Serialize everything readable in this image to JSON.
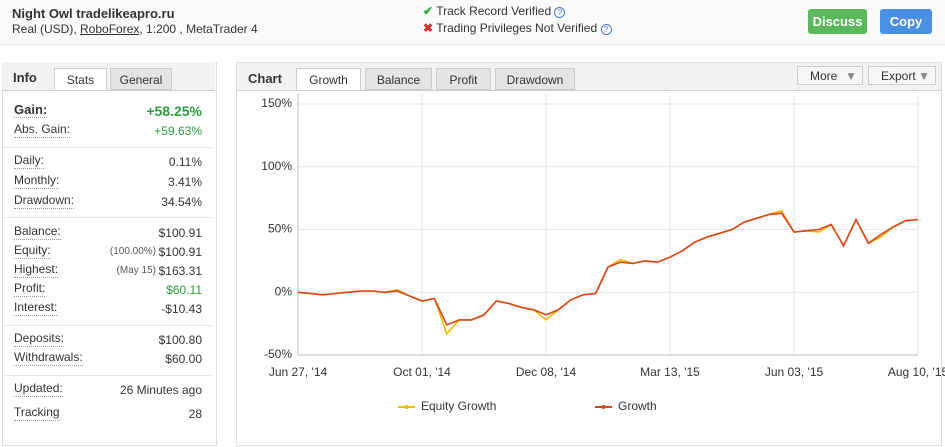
{
  "header": {
    "title": "Night Owl tradelikeapro.ru",
    "account": "Real (USD), ",
    "broker": "RoboForex",
    "details": ", 1:200 , MetaTrader 4",
    "verified": "Track Record Verified",
    "not_verified": "Trading Privileges Not Verified",
    "discuss": "Discuss",
    "copy": "Copy"
  },
  "info": {
    "title": "Info",
    "tabs": [
      "Stats",
      "General"
    ],
    "groups": [
      [
        {
          "label": "Gain:",
          "value": "+58.25%"
        },
        {
          "label": "Abs. Gain:",
          "value": "+59.63%"
        }
      ],
      [
        {
          "label": "Daily:",
          "value": "0.11%"
        },
        {
          "label": "Monthly:",
          "value": "3.41%"
        },
        {
          "label": "Drawdown:",
          "value": "34.54%"
        }
      ],
      [
        {
          "label": "Balance:",
          "value": "$100.91"
        },
        {
          "label": "Equity:",
          "value": "$100.91",
          "note": "(100.00%)"
        },
        {
          "label": "Highest:",
          "value": "$163.31",
          "note": "(May 15)"
        },
        {
          "label": "Profit:",
          "value": "$60.11"
        },
        {
          "label": "Interest:",
          "value": "-$10.43"
        }
      ],
      [
        {
          "label": "Deposits:",
          "value": "$100.80"
        },
        {
          "label": "Withdrawals:",
          "value": "$60.00"
        }
      ],
      [
        {
          "label": "Updated:",
          "value": "26 Minutes ago"
        },
        {
          "label": "Tracking",
          "value": "28"
        }
      ]
    ]
  },
  "chart_panel": {
    "title": "Chart",
    "tabs": [
      "Growth",
      "Balance",
      "Profit",
      "Drawdown"
    ],
    "more": "More",
    "export": "Export"
  },
  "chart_data": {
    "type": "line",
    "categories": [
      "Jun 27, '14",
      null,
      null,
      null,
      null,
      null,
      null,
      null,
      null,
      null,
      "Oct 01, '14",
      null,
      null,
      null,
      null,
      null,
      null,
      null,
      null,
      null,
      "Dec 08, '14",
      null,
      null,
      null,
      null,
      null,
      null,
      null,
      null,
      null,
      "Mar 13, '15",
      null,
      null,
      null,
      null,
      null,
      null,
      null,
      null,
      null,
      "Jun 03, '15",
      null,
      null,
      null,
      null,
      null,
      null,
      null,
      null,
      null,
      "Aug 10, '15"
    ],
    "series": [
      {
        "name": "Equity Growth",
        "color": "#f5b800",
        "values": [
          0,
          -1,
          -2,
          -1,
          0,
          1,
          1,
          0,
          2,
          -3,
          -7,
          -5,
          -33,
          -22,
          -22,
          -18,
          -7,
          -9,
          -12,
          -14,
          -22,
          -14,
          -6,
          -2,
          -1,
          20,
          26,
          23,
          25,
          24,
          28,
          33,
          40,
          44,
          47,
          50,
          56,
          59,
          62,
          65,
          48,
          49,
          48,
          54,
          37,
          58,
          39,
          44,
          52,
          57,
          58
        ]
      },
      {
        "name": "Growth",
        "color": "#d9441c",
        "values": [
          0,
          -1,
          -2,
          -1,
          0,
          1,
          1,
          0,
          1,
          -3,
          -7,
          -5,
          -26,
          -22,
          -22,
          -18,
          -7,
          -9,
          -12,
          -14,
          -18,
          -14,
          -6,
          -2,
          -1,
          20,
          24,
          23,
          25,
          24,
          28,
          33,
          40,
          44,
          47,
          50,
          56,
          59,
          62,
          63,
          48,
          49,
          50,
          54,
          37,
          58,
          39,
          46,
          52,
          57,
          58
        ]
      }
    ],
    "ylim": [
      -50,
      150
    ],
    "yticks": [
      {
        "value": -50,
        "label": "-50%"
      },
      {
        "value": 0,
        "label": "0%"
      },
      {
        "value": 50,
        "label": "50%"
      },
      {
        "value": 100,
        "label": "100%"
      },
      {
        "value": 150,
        "label": "150%"
      }
    ],
    "grid": true
  }
}
